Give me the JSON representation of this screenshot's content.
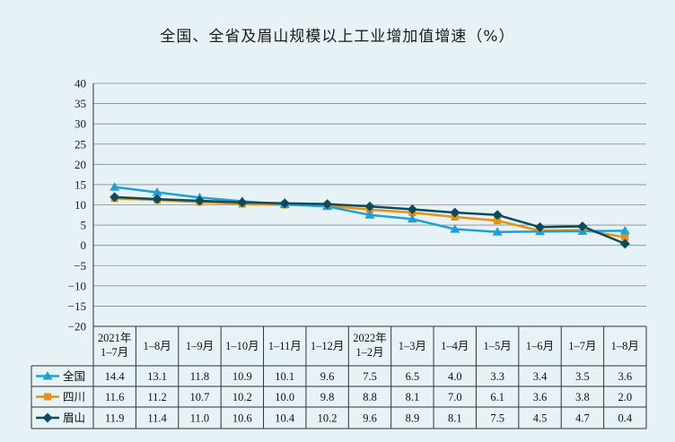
{
  "chart_data": {
    "type": "line",
    "title": "全国、全省及眉山规模以上工业增加值增速（%）",
    "categories": [
      [
        "2021年",
        "1–7月"
      ],
      [
        "1–8月"
      ],
      [
        "1–9月"
      ],
      [
        "1–10月"
      ],
      [
        "1–11月"
      ],
      [
        "1–12月"
      ],
      [
        "2022年",
        "1–2月"
      ],
      [
        "1–3月"
      ],
      [
        "1–4月"
      ],
      [
        "1–5月"
      ],
      [
        "1–6月"
      ],
      [
        "1–7月"
      ],
      [
        "1–8月"
      ]
    ],
    "ylim": [
      -20,
      40
    ],
    "yticks": [
      "-20",
      "-15",
      "-10",
      "-5",
      "0",
      "5",
      "10",
      "15",
      "20",
      "25",
      "30",
      "35",
      "40"
    ],
    "grid": true,
    "legend": "data-table",
    "series": [
      {
        "name": "全国",
        "color": "#1ea0d6",
        "marker": "triangle",
        "values": [
          14.4,
          13.1,
          11.8,
          10.9,
          10.1,
          9.6,
          7.5,
          6.5,
          4.0,
          3.3,
          3.4,
          3.5,
          3.6
        ],
        "labels": [
          "14.4",
          "13.1",
          "11.8",
          "10.9",
          "10.1",
          "9.6",
          "7.5",
          "6.5",
          "4.0",
          "3.3",
          "3.4",
          "3.5",
          "3.6"
        ]
      },
      {
        "name": "四川",
        "color": "#e8900f",
        "marker": "square",
        "values": [
          11.6,
          11.2,
          10.7,
          10.2,
          10.0,
          9.8,
          8.8,
          8.1,
          7.0,
          6.1,
          3.6,
          3.8,
          2.0
        ],
        "labels": [
          "11.6",
          "11.2",
          "10.7",
          "10.2",
          "10.0",
          "9.8",
          "8.8",
          "8.1",
          "7.0",
          "6.1",
          "3.6",
          "3.8",
          "2.0"
        ]
      },
      {
        "name": "眉山",
        "color": "#0d4a5e",
        "marker": "diamond",
        "values": [
          11.9,
          11.4,
          11.0,
          10.6,
          10.4,
          10.2,
          9.6,
          8.9,
          8.1,
          7.5,
          4.5,
          4.7,
          0.4
        ],
        "labels": [
          "11.9",
          "11.4",
          "11.0",
          "10.6",
          "10.4",
          "10.2",
          "9.6",
          "8.9",
          "8.1",
          "7.5",
          "4.5",
          "4.7",
          "0.4"
        ]
      }
    ]
  }
}
